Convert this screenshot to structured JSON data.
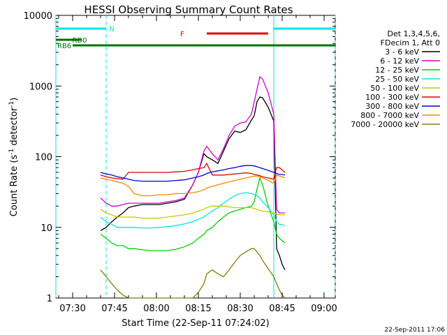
{
  "chart_data": {
    "type": "line",
    "title": "HESSI Observing Summary Count Rates",
    "xlabel": "Start Time (22-Sep-11 07:24:02)",
    "ylabel_main": "Count Rate (s",
    "ylabel_exp1": "-1",
    "ylabel_mid": " detector",
    "ylabel_exp2": "-1",
    "ylabel_end": ")",
    "y_scale": "log",
    "ylim": [
      1,
      10000
    ],
    "xlim": [
      "07:24",
      "09:04"
    ],
    "x_ticks": [
      "07:30",
      "07:45",
      "08:00",
      "08:15",
      "08:30",
      "08:45",
      "09:00"
    ],
    "y_ticks": [
      "1",
      "10",
      "100",
      "1000",
      "10000"
    ],
    "legend_header": [
      "Det 1,3,4,5,6,",
      "FDecim 1, Att 0"
    ],
    "footer_date": "22-Sep-2011 17:06",
    "flags": [
      {
        "label": "N",
        "color": "#00e5e5",
        "segments": [
          [
            "07:24",
            "07:42"
          ],
          [
            "08:42",
            "09:04"
          ]
        ]
      },
      {
        "label": "F",
        "color": "#e00000",
        "segments": [
          [
            "08:18",
            "08:40"
          ]
        ]
      },
      {
        "label": "RD0",
        "color": "#007000",
        "segments": [
          [
            "07:24",
            "07:33"
          ]
        ]
      },
      {
        "label": "RB6",
        "color": "#007000",
        "segments": [
          [
            "07:30",
            "07:52"
          ],
          [
            "07:52",
            "08:16"
          ],
          [
            "08:16",
            "08:42"
          ],
          [
            "08:42",
            "09:04"
          ]
        ]
      }
    ],
    "vlines": [
      {
        "time": "07:24",
        "style": "solid",
        "color": "#00e5e5"
      },
      {
        "time": "07:42",
        "style": "dashed",
        "color": "#00e5e5"
      },
      {
        "time": "08:42",
        "style": "solid",
        "color": "#00e5e5"
      },
      {
        "time": "09:04",
        "style": "dashed",
        "color": "#00e5e5"
      }
    ],
    "x": [
      "07:40",
      "07:42",
      "07:44",
      "07:46",
      "07:48",
      "07:50",
      "07:52",
      "07:55",
      "07:58",
      "08:01",
      "08:04",
      "08:07",
      "08:10",
      "08:13",
      "08:15",
      "08:17",
      "08:18",
      "08:20",
      "08:22",
      "08:24",
      "08:26",
      "08:28",
      "08:30",
      "08:32",
      "08:34",
      "08:35",
      "08:36",
      "08:37",
      "08:38",
      "08:40",
      "08:42",
      "08:43",
      "08:44",
      "08:45",
      "08:46"
    ],
    "series": [
      {
        "name": "3 - 6 keV",
        "color": "#000000",
        "values": [
          9,
          10,
          12,
          14,
          16,
          19,
          20,
          21,
          21,
          21,
          22,
          23,
          25,
          40,
          60,
          110,
          100,
          90,
          80,
          120,
          180,
          230,
          220,
          240,
          330,
          380,
          600,
          700,
          680,
          500,
          320,
          5,
          4,
          3,
          2.5
        ]
      },
      {
        "name": "6 - 12 keV",
        "color": "#d000d0",
        "values": [
          26,
          22,
          20,
          20,
          21,
          22,
          22,
          22,
          22,
          22,
          23,
          24,
          26,
          40,
          60,
          120,
          140,
          110,
          90,
          130,
          200,
          270,
          300,
          310,
          400,
          600,
          900,
          1350,
          1250,
          800,
          400,
          18,
          16,
          16,
          16
        ]
      },
      {
        "name": "12 - 25 keV",
        "color": "#00d000",
        "values": [
          8,
          7,
          6,
          5.5,
          5.5,
          5,
          5,
          4.8,
          4.7,
          4.7,
          4.7,
          4.9,
          5.3,
          6,
          7,
          8,
          9,
          10,
          12,
          14,
          16,
          17,
          18,
          19,
          20,
          23,
          35,
          50,
          40,
          20,
          12,
          8,
          7,
          6.5,
          6
        ]
      },
      {
        "name": "25 - 50 keV",
        "color": "#00e5e5",
        "values": [
          14,
          12,
          11,
          10,
          10,
          10,
          10,
          9.8,
          9.8,
          10,
          10.2,
          10.6,
          11.2,
          12,
          13,
          14,
          15,
          17,
          19,
          22,
          25,
          28,
          30,
          31,
          30,
          29,
          28,
          26,
          23,
          19,
          15,
          12,
          11,
          11,
          10.5
        ]
      },
      {
        "name": "50 - 100 keV",
        "color": "#c8c800",
        "values": [
          18,
          16,
          15,
          14,
          14,
          14,
          14,
          13.5,
          13.5,
          13.5,
          14,
          14.5,
          15,
          16,
          17,
          18,
          19,
          20,
          20,
          20,
          19.5,
          19,
          19,
          19,
          19,
          18.5,
          18,
          17.5,
          17,
          16.5,
          16,
          15.5,
          15,
          15,
          15
        ]
      },
      {
        "name": "100 - 300 keV",
        "color": "#e00000",
        "values": [
          55,
          52,
          50,
          49,
          48,
          60,
          60,
          60,
          60,
          60,
          60,
          61,
          62,
          65,
          68,
          70,
          80,
          55,
          55,
          55,
          56,
          57,
          58,
          59,
          58,
          56,
          55,
          54,
          52,
          50,
          48,
          70,
          70,
          65,
          60
        ]
      },
      {
        "name": "300 - 800 keV",
        "color": "#0000e0",
        "values": [
          60,
          57,
          55,
          52,
          50,
          48,
          46,
          45,
          45,
          45,
          45,
          46,
          47,
          50,
          52,
          55,
          58,
          61,
          63,
          65,
          68,
          70,
          73,
          75,
          75,
          74,
          72,
          70,
          68,
          64,
          60,
          58,
          56,
          56,
          55
        ]
      },
      {
        "name": "800 - 7000 keV",
        "color": "#ff8800",
        "values": [
          50,
          48,
          46,
          44,
          42,
          38,
          30,
          28,
          28,
          29,
          29,
          30,
          30,
          31,
          32,
          34,
          36,
          38,
          40,
          42,
          44,
          46,
          48,
          50,
          52,
          53,
          53,
          52,
          50,
          46,
          42,
          55,
          53,
          52,
          50
        ]
      },
      {
        "name": "7000 - 20000 keV",
        "color": "#808000",
        "values": [
          2.5,
          2,
          1.6,
          1.3,
          1.1,
          1,
          1,
          1,
          1,
          1,
          1,
          1,
          1,
          1,
          1.2,
          1.6,
          2.2,
          2.5,
          2.2,
          2,
          2.5,
          3.2,
          4,
          4.5,
          5,
          5,
          4.5,
          4,
          3.4,
          2.6,
          2,
          1.6,
          1.3,
          1.1,
          1
        ]
      }
    ]
  }
}
